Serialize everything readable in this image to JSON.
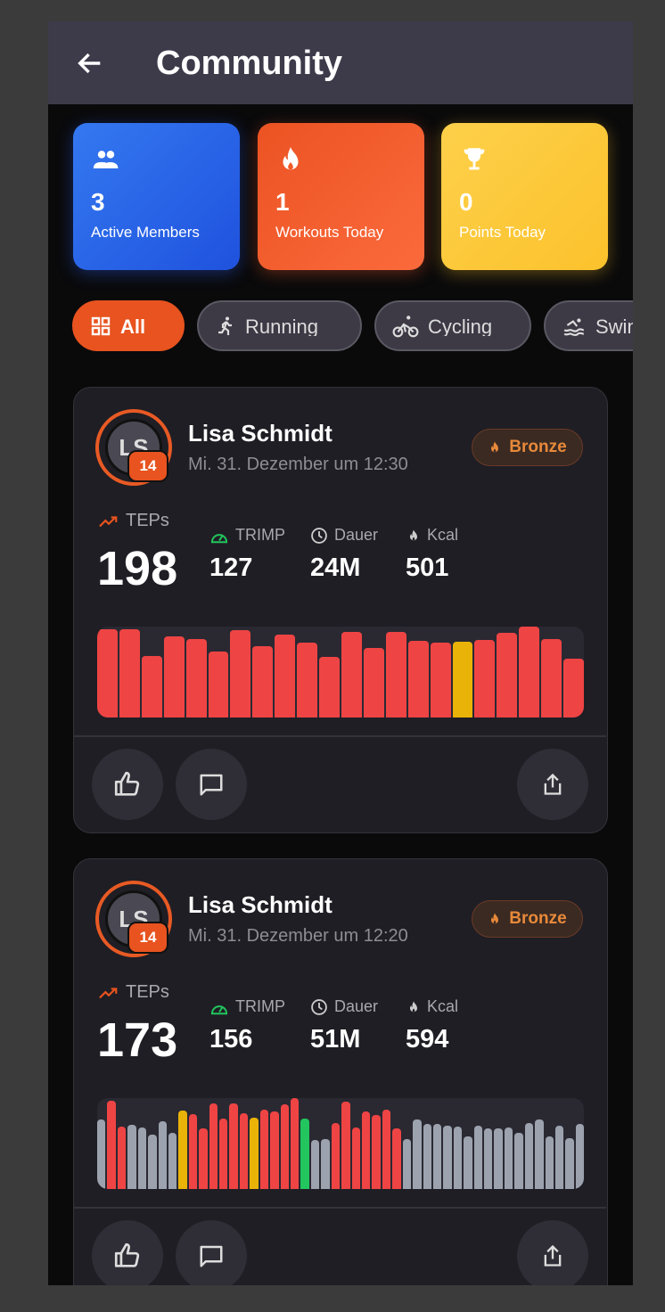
{
  "header": {
    "title": "Community",
    "back_icon": "arrow-left-icon"
  },
  "stats": [
    {
      "value": "3",
      "label": "Active Members",
      "icon": "group-icon",
      "color": "#2f6be8"
    },
    {
      "value": "1",
      "label": "Workouts Today",
      "icon": "fire-icon",
      "color": "#f05a28"
    },
    {
      "value": "0",
      "label": "Points Today",
      "icon": "trophy-icon",
      "color": "#fdc93a"
    }
  ],
  "filters": [
    {
      "label": "All",
      "icon": "grid-icon",
      "active": true
    },
    {
      "label": "Running",
      "icon": "runner-icon",
      "active": false
    },
    {
      "label": "Cycling",
      "icon": "cyclist-icon",
      "active": false
    },
    {
      "label": "Swimming",
      "icon": "swimmer-icon",
      "active": false
    }
  ],
  "colors": {
    "red": "#ef4444",
    "yellow": "#eab308",
    "green": "#22c55e",
    "gray": "#9ca3af"
  },
  "posts": [
    {
      "initials": "LS",
      "level": "14",
      "name": "Lisa Schmidt",
      "date": "Mi. 31. Dezember um 12:30",
      "badge": "Bronze",
      "teps_label": "TEPs",
      "teps": "198",
      "trimp_label": "TRIMP",
      "trimp": "127",
      "duration_label": "Dauer",
      "duration": "24M",
      "kcal_label": "Kcal",
      "kcal": "501",
      "chart": {
        "values": [
          97,
          97,
          68,
          89,
          86,
          73,
          96,
          78,
          91,
          82,
          67,
          94,
          76,
          94,
          84,
          82,
          83,
          85,
          93,
          100,
          86,
          65
        ],
        "colors": [
          "red",
          "red",
          "red",
          "red",
          "red",
          "red",
          "red",
          "red",
          "red",
          "red",
          "red",
          "red",
          "red",
          "red",
          "red",
          "red",
          "yellow",
          "red",
          "red",
          "red",
          "red",
          "red"
        ]
      }
    },
    {
      "initials": "LS",
      "level": "14",
      "name": "Lisa Schmidt",
      "date": "Mi. 31. Dezember um 12:20",
      "badge": "Bronze",
      "teps_label": "TEPs",
      "teps": "173",
      "trimp_label": "TRIMP",
      "trimp": "156",
      "duration_label": "Dauer",
      "duration": "51M",
      "kcal_label": "Kcal",
      "kcal": "594",
      "chart": {
        "values": [
          76,
          97,
          69,
          71,
          68,
          60,
          75,
          62,
          86,
          82,
          67,
          94,
          77,
          94,
          83,
          78,
          87,
          85,
          93,
          100,
          77,
          54,
          55,
          73,
          96,
          68,
          85,
          81,
          87,
          67,
          55,
          76,
          72,
          72,
          70,
          69,
          58,
          70,
          67,
          67,
          68,
          62,
          73,
          76,
          58,
          70,
          56,
          72
        ],
        "colors": [
          "gray",
          "red",
          "red",
          "gray",
          "gray",
          "gray",
          "gray",
          "gray",
          "yellow",
          "red",
          "red",
          "red",
          "red",
          "red",
          "red",
          "yellow",
          "red",
          "red",
          "red",
          "red",
          "green",
          "gray",
          "gray",
          "red",
          "red",
          "red",
          "red",
          "red",
          "red",
          "red",
          "gray",
          "gray",
          "gray",
          "gray",
          "gray",
          "gray",
          "gray",
          "gray",
          "gray",
          "gray",
          "gray",
          "gray",
          "gray",
          "gray",
          "gray",
          "gray",
          "gray",
          "gray"
        ]
      }
    }
  ]
}
